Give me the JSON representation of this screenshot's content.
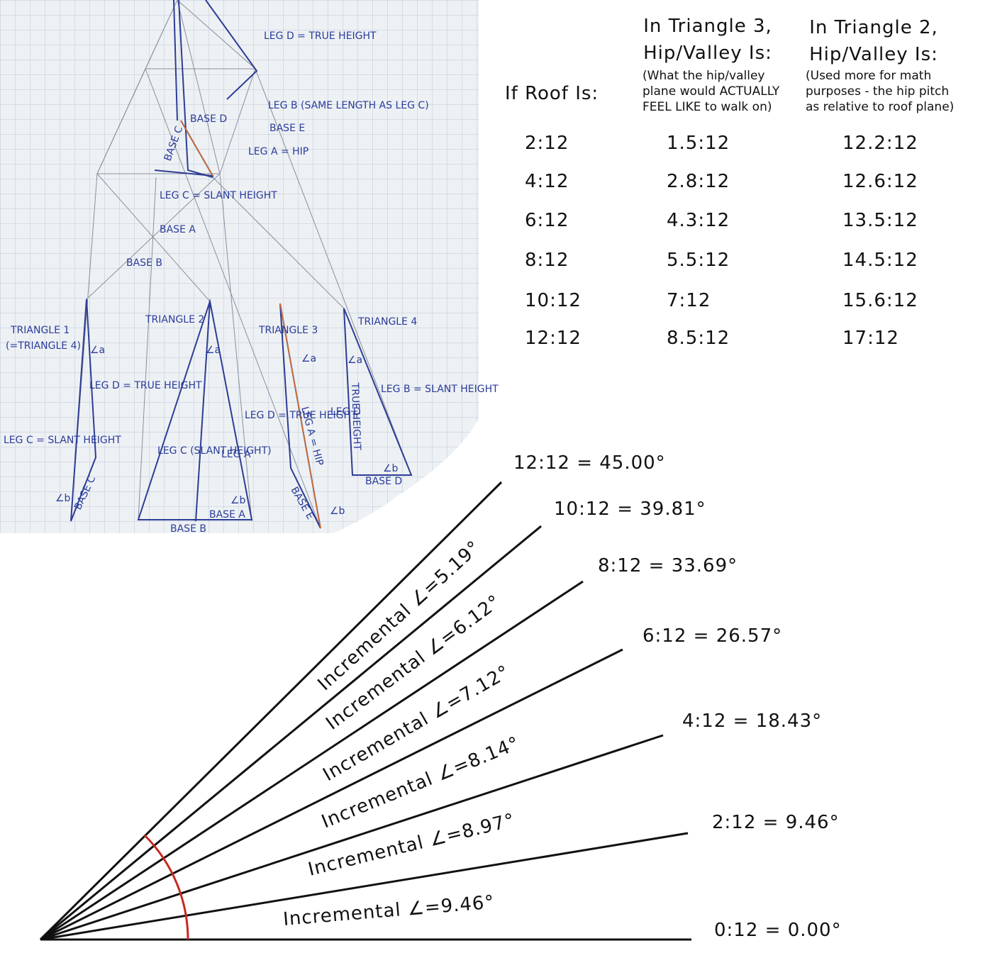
{
  "sketch": {
    "labels": [
      "LEG D = TRUE HEIGHT",
      "LEG B (SAME LENGTH AS LEG C)",
      "BASE D",
      "BASE E",
      "LEG A = HIP",
      "BASE C",
      "LEG C = SLANT HEIGHT",
      "BASE A",
      "BASE B",
      "TRIANGLE 1",
      "(=TRIANGLE 4)",
      "TRIANGLE 2",
      "TRIANGLE 3",
      "TRIANGLE 4",
      "LEG D = TRUE HEIGHT",
      "LEG C = SLANT HEIGHT",
      "LEG C (SLANT HEIGHT)",
      "LEG A",
      "BASE A",
      "BASE B",
      "LEG D = TRUE HEIGHT",
      "LEG A = HIP",
      "BASE E",
      "LEG D",
      "TRUE HEIGHT",
      "LEG B = SLANT HEIGHT",
      "BASE D",
      "BASE C",
      "∠a",
      "∠b",
      "∠a",
      "∠b",
      "∠a",
      "∠b",
      "∠a",
      "∠b"
    ]
  },
  "table": {
    "headers": [
      [
        "If Roof Is:"
      ],
      [
        "In Triangle 3,",
        "Hip/Valley Is:"
      ],
      [
        "In Triangle 2,",
        "Hip/Valley Is:"
      ]
    ],
    "notes": [
      [
        "(What the hip/valley",
        "plane would ACTUALLY",
        "FEEL LIKE to walk on)"
      ],
      [
        "(Used more for math",
        "purposes - the hip pitch",
        "as relative to roof plane)"
      ]
    ],
    "rows": [
      [
        "2:12",
        "1.5:12",
        "12.2:12"
      ],
      [
        "4:12",
        "2.8:12",
        "12.6:12"
      ],
      [
        "6:12",
        "4.3:12",
        "13.5:12"
      ],
      [
        "8:12",
        "5.5:12",
        "14.5:12"
      ],
      [
        "10:12",
        "7:12",
        "15.6:12"
      ],
      [
        "12:12",
        "8.5:12",
        "17:12"
      ]
    ]
  },
  "angles": {
    "lines": [
      "12:12 = 45.00°",
      "10:12 = 39.81°",
      "8:12 = 33.69°",
      "6:12 = 26.57°",
      "4:12 = 18.43°",
      "2:12 = 9.46°",
      "0:12 = 0.00°"
    ],
    "increments": [
      "Incremental ∠=5.19°",
      "Incremental ∠=6.12°",
      "Incremental ∠=7.12°",
      "Incremental ∠=8.14°",
      "Incremental ∠=8.97°",
      "Incremental ∠=9.46°"
    ]
  }
}
